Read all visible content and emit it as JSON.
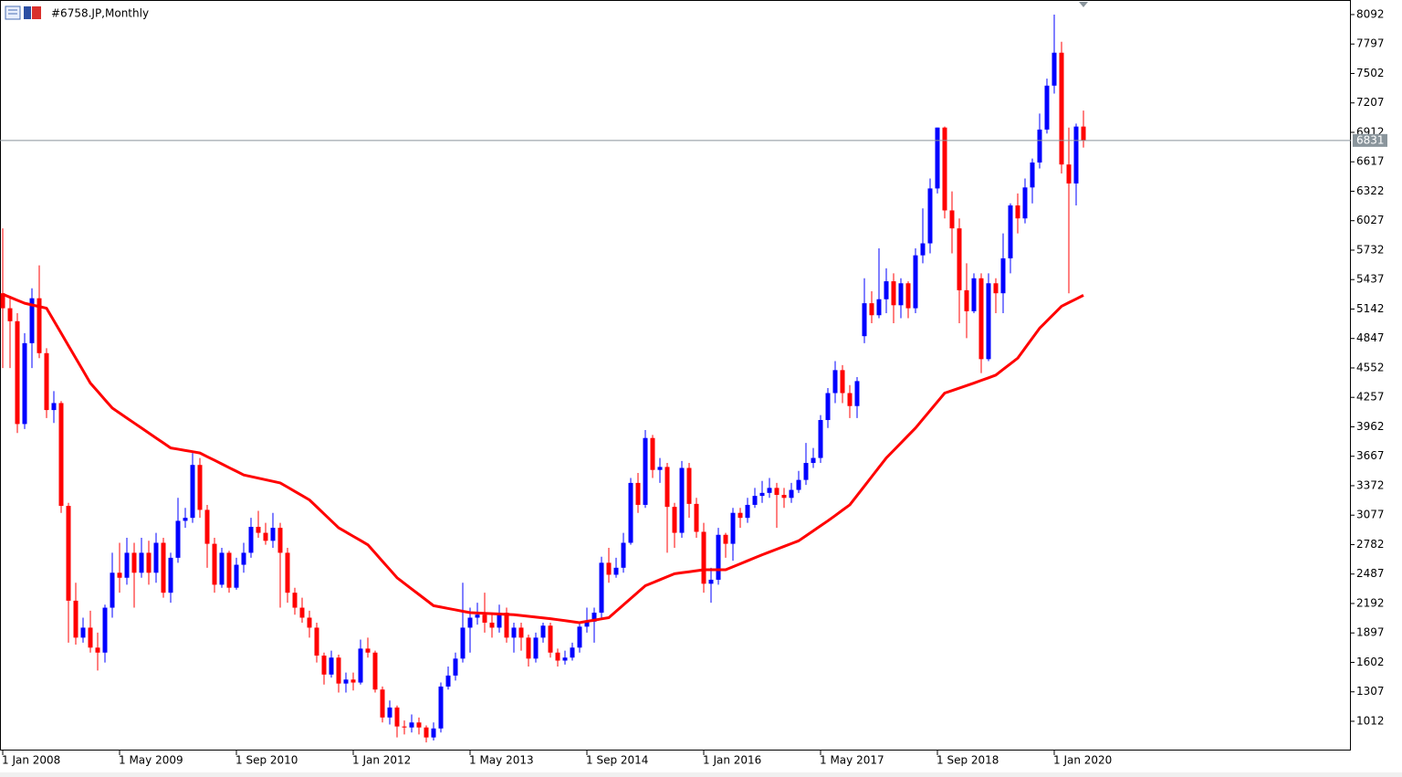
{
  "chart_data": {
    "type": "candlestick",
    "title": "#6758.JP,Monthly",
    "up_color": "#0000ff",
    "down_color": "#ff0000",
    "ma_color": "#ff0000",
    "current_price": 6831,
    "ylim": [
      719,
      8238
    ],
    "yticks": [
      8092,
      7797,
      7502,
      7207,
      6912,
      6617,
      6322,
      6027,
      5732,
      5437,
      5142,
      4847,
      4552,
      4257,
      3962,
      3667,
      3372,
      3077,
      2782,
      2487,
      2192,
      1897,
      1602,
      1307,
      1012
    ],
    "categories": [
      "1 Jan 2008",
      null,
      null,
      null,
      null,
      null,
      null,
      null,
      null,
      null,
      null,
      null,
      null,
      null,
      null,
      null,
      "1 May 2009",
      null,
      null,
      null,
      null,
      null,
      null,
      null,
      null,
      null,
      null,
      null,
      null,
      null,
      null,
      null,
      "1 Sep 2010",
      null,
      null,
      null,
      null,
      null,
      null,
      null,
      null,
      null,
      null,
      null,
      null,
      null,
      null,
      null,
      "1 Jan 2012",
      null,
      null,
      null,
      null,
      null,
      null,
      null,
      null,
      null,
      null,
      null,
      null,
      null,
      null,
      null,
      "1 May 2013",
      null,
      null,
      null,
      null,
      null,
      null,
      null,
      null,
      null,
      null,
      null,
      null,
      null,
      null,
      null,
      "1 Sep 2014",
      null,
      null,
      null,
      null,
      null,
      null,
      null,
      null,
      null,
      null,
      null,
      null,
      null,
      null,
      null,
      "1 Jan 2016",
      null,
      null,
      null,
      null,
      null,
      null,
      null,
      null,
      null,
      null,
      null,
      null,
      null,
      null,
      null,
      "1 May 2017",
      null,
      null,
      null,
      null,
      null,
      null,
      null,
      null,
      null,
      null,
      null,
      null,
      null,
      null,
      null,
      "1 Sep 2018",
      null,
      null,
      null,
      null,
      null,
      null,
      null,
      null,
      null,
      null,
      null,
      null,
      null,
      null,
      null,
      "1 Jan 2020",
      null,
      null,
      null,
      null
    ],
    "open": [
      5300,
      5150,
      5020,
      3990,
      4800,
      5250,
      4700,
      4130,
      4200,
      3170,
      2220,
      1850,
      1950,
      1750,
      1700,
      2150,
      2500,
      2450,
      2700,
      2500,
      2700,
      2500,
      2800,
      2300,
      2650,
      3020,
      3050,
      3580,
      3130,
      2790,
      2380,
      2700,
      2350,
      2580,
      2700,
      2960,
      2900,
      2820,
      2950,
      2700,
      2300,
      2150,
      2050,
      1950,
      1670,
      1480,
      1650,
      1390,
      1430,
      1400,
      1740,
      1700,
      1330,
      1050,
      1150,
      960,
      950,
      1000,
      950,
      850,
      940,
      1360,
      1470,
      1640,
      1950,
      2050,
      2080,
      2000,
      1950,
      2100,
      1850,
      1950,
      1850,
      1640,
      1850,
      1970,
      1700,
      1620,
      1650,
      1750,
      1960,
      2010,
      2100,
      2600,
      2480,
      2550,
      2800,
      3400,
      3180,
      3850,
      3530,
      3560,
      3160,
      2900,
      3550,
      3190,
      2910,
      2390,
      2430,
      2880,
      2790,
      3100,
      3050,
      3180,
      3270,
      3300,
      3350,
      3280,
      3250,
      3330,
      3430,
      3600,
      3650,
      4030,
      4300,
      4530,
      4300,
      4170,
      4870,
      5200,
      5080,
      5240,
      5420,
      5180,
      5400,
      5150,
      5680,
      5800,
      6350,
      6960,
      6130,
      5950,
      5330,
      5120,
      5450,
      4640,
      5400,
      5300,
      5650,
      6180,
      6050,
      6360,
      6610,
      6940,
      7380,
      7710,
      6590,
      6400,
      6970
    ],
    "high": [
      5950,
      5250,
      5100,
      4900,
      5350,
      5580,
      4750,
      4320,
      4220,
      3200,
      2400,
      2050,
      2120,
      1900,
      2180,
      2700,
      2800,
      2850,
      2800,
      2850,
      2820,
      2900,
      2850,
      2700,
      3250,
      3150,
      3700,
      3650,
      3180,
      2850,
      2750,
      2720,
      2650,
      2800,
      3050,
      3120,
      3000,
      3100,
      3000,
      2750,
      2350,
      2250,
      2120,
      2000,
      1700,
      1720,
      1680,
      1500,
      1500,
      1830,
      1850,
      1720,
      1360,
      1220,
      1170,
      1020,
      1080,
      1050,
      970,
      1000,
      1400,
      1560,
      1700,
      2400,
      2150,
      2200,
      2300,
      2100,
      2180,
      2150,
      2000,
      2000,
      1880,
      1900,
      2000,
      2000,
      1740,
      1720,
      1800,
      2000,
      2150,
      2150,
      2660,
      2750,
      2650,
      2900,
      3450,
      3500,
      3930,
      3880,
      3650,
      3600,
      3200,
      3620,
      3600,
      3250,
      3000,
      2550,
      2950,
      2900,
      3150,
      3150,
      3250,
      3350,
      3420,
      3450,
      3400,
      3350,
      3400,
      3520,
      3800,
      3750,
      4080,
      4350,
      4620,
      4580,
      4380,
      4460,
      5450,
      5320,
      5750,
      5550,
      5500,
      5450,
      5420,
      5750,
      6150,
      6450,
      6960,
      6970,
      6320,
      6050,
      5600,
      5500,
      5500,
      5500,
      5450,
      5900,
      6200,
      6300,
      6450,
      6650,
      7100,
      7450,
      8092,
      7820,
      6960,
      7000,
      7130
    ],
    "low": [
      4550,
      4550,
      3900,
      3940,
      4550,
      4650,
      4050,
      4000,
      3100,
      1800,
      1780,
      1800,
      1700,
      1520,
      1600,
      2050,
      2300,
      2380,
      2150,
      2450,
      2380,
      2400,
      2250,
      2200,
      2600,
      2950,
      3000,
      3050,
      2550,
      2300,
      2350,
      2300,
      2330,
      2500,
      2650,
      2850,
      2780,
      2750,
      2150,
      2200,
      2080,
      2000,
      1850,
      1600,
      1380,
      1450,
      1300,
      1300,
      1320,
      1380,
      1650,
      1300,
      1000,
      980,
      850,
      880,
      900,
      880,
      800,
      820,
      900,
      1330,
      1420,
      1600,
      1700,
      1980,
      1900,
      1850,
      1900,
      1800,
      1700,
      1720,
      1560,
      1600,
      1800,
      1650,
      1560,
      1580,
      1620,
      1700,
      1900,
      1800,
      2050,
      2400,
      2450,
      2500,
      2780,
      3100,
      3150,
      3450,
      3400,
      2700,
      2750,
      2850,
      3050,
      2850,
      2300,
      2200,
      2380,
      2650,
      2620,
      2950,
      3000,
      3150,
      3200,
      3250,
      2950,
      3150,
      3200,
      3300,
      3380,
      3550,
      3600,
      3950,
      4200,
      4200,
      4050,
      4050,
      4800,
      5000,
      5050,
      5100,
      5000,
      5050,
      5050,
      5100,
      5600,
      5700,
      6300,
      6050,
      5700,
      5000,
      4850,
      5100,
      4500,
      4620,
      5100,
      5100,
      5500,
      5900,
      6000,
      6200,
      6550,
      6900,
      7300,
      6500,
      5300,
      6180,
      6760
    ],
    "close": [
      5150,
      5020,
      3990,
      4800,
      5250,
      4700,
      4130,
      4200,
      3170,
      2220,
      1850,
      1950,
      1750,
      1700,
      2150,
      2500,
      2450,
      2700,
      2500,
      2700,
      2500,
      2800,
      2300,
      2650,
      3020,
      3050,
      3580,
      3130,
      2790,
      2380,
      2700,
      2350,
      2580,
      2700,
      2960,
      2900,
      2820,
      2950,
      2700,
      2300,
      2150,
      2050,
      1950,
      1670,
      1480,
      1650,
      1390,
      1430,
      1400,
      1740,
      1700,
      1330,
      1050,
      1150,
      960,
      950,
      1000,
      950,
      850,
      940,
      1360,
      1470,
      1640,
      1950,
      2050,
      2080,
      2000,
      1950,
      2100,
      1850,
      1950,
      1850,
      1640,
      1850,
      1970,
      1700,
      1620,
      1650,
      1750,
      1960,
      2010,
      2100,
      2600,
      2480,
      2550,
      2800,
      3400,
      3180,
      3850,
      3530,
      3560,
      3160,
      2900,
      3550,
      3190,
      2910,
      2390,
      2430,
      2880,
      2790,
      3100,
      3050,
      3180,
      3270,
      3300,
      3350,
      3280,
      3250,
      3330,
      3430,
      3600,
      3650,
      4030,
      4300,
      4530,
      4300,
      4170,
      4420,
      5200,
      5080,
      5240,
      5420,
      5180,
      5400,
      5150,
      5680,
      5800,
      6350,
      6960,
      6130,
      5950,
      5330,
      5120,
      5450,
      4640,
      5400,
      5300,
      5650,
      6180,
      6050,
      6360,
      6610,
      6940,
      7380,
      7710,
      6590,
      6400,
      6970,
      6831
    ],
    "ma_values": [
      5290,
      5260,
      5230,
      5200,
      5183,
      5167,
      5150,
      5025,
      4900,
      4775,
      4650,
      4525,
      4400,
      4317,
      4233,
      4150,
      4100,
      4050,
      4000,
      3950,
      3900,
      3850,
      3800,
      3750,
      3738,
      3725,
      3713,
      3700,
      3663,
      3627,
      3590,
      3553,
      3517,
      3480,
      3464,
      3448,
      3432,
      3416,
      3400,
      3358,
      3315,
      3273,
      3230,
      3160,
      3090,
      3020,
      2950,
      2908,
      2865,
      2823,
      2780,
      2698,
      2615,
      2533,
      2450,
      2394,
      2338,
      2282,
      2226,
      2170,
      2156,
      2142,
      2128,
      2114,
      2100,
      2097,
      2093,
      2090,
      2087,
      2083,
      2080,
      2072,
      2064,
      2056,
      2048,
      2040,
      2030,
      2020,
      2010,
      2000,
      2013,
      2025,
      2038,
      2050,
      2114,
      2178,
      2242,
      2306,
      2370,
      2400,
      2430,
      2460,
      2490,
      2500,
      2510,
      2520,
      2530,
      2530,
      2530,
      2530,
      2560,
      2590,
      2620,
      2650,
      2680,
      2708,
      2736,
      2764,
      2792,
      2820,
      2870,
      2920,
      2970,
      3020,
      3073,
      3127,
      3180,
      3274,
      3368,
      3462,
      3556,
      3650,
      3725,
      3800,
      3875,
      3950,
      4038,
      4125,
      4213,
      4300,
      4325,
      4350,
      4375,
      4400,
      4427,
      4453,
      4480,
      4537,
      4593,
      4650,
      4750,
      4850,
      4950,
      5023,
      5097,
      5170,
      5207,
      5243,
      5280
    ]
  }
}
